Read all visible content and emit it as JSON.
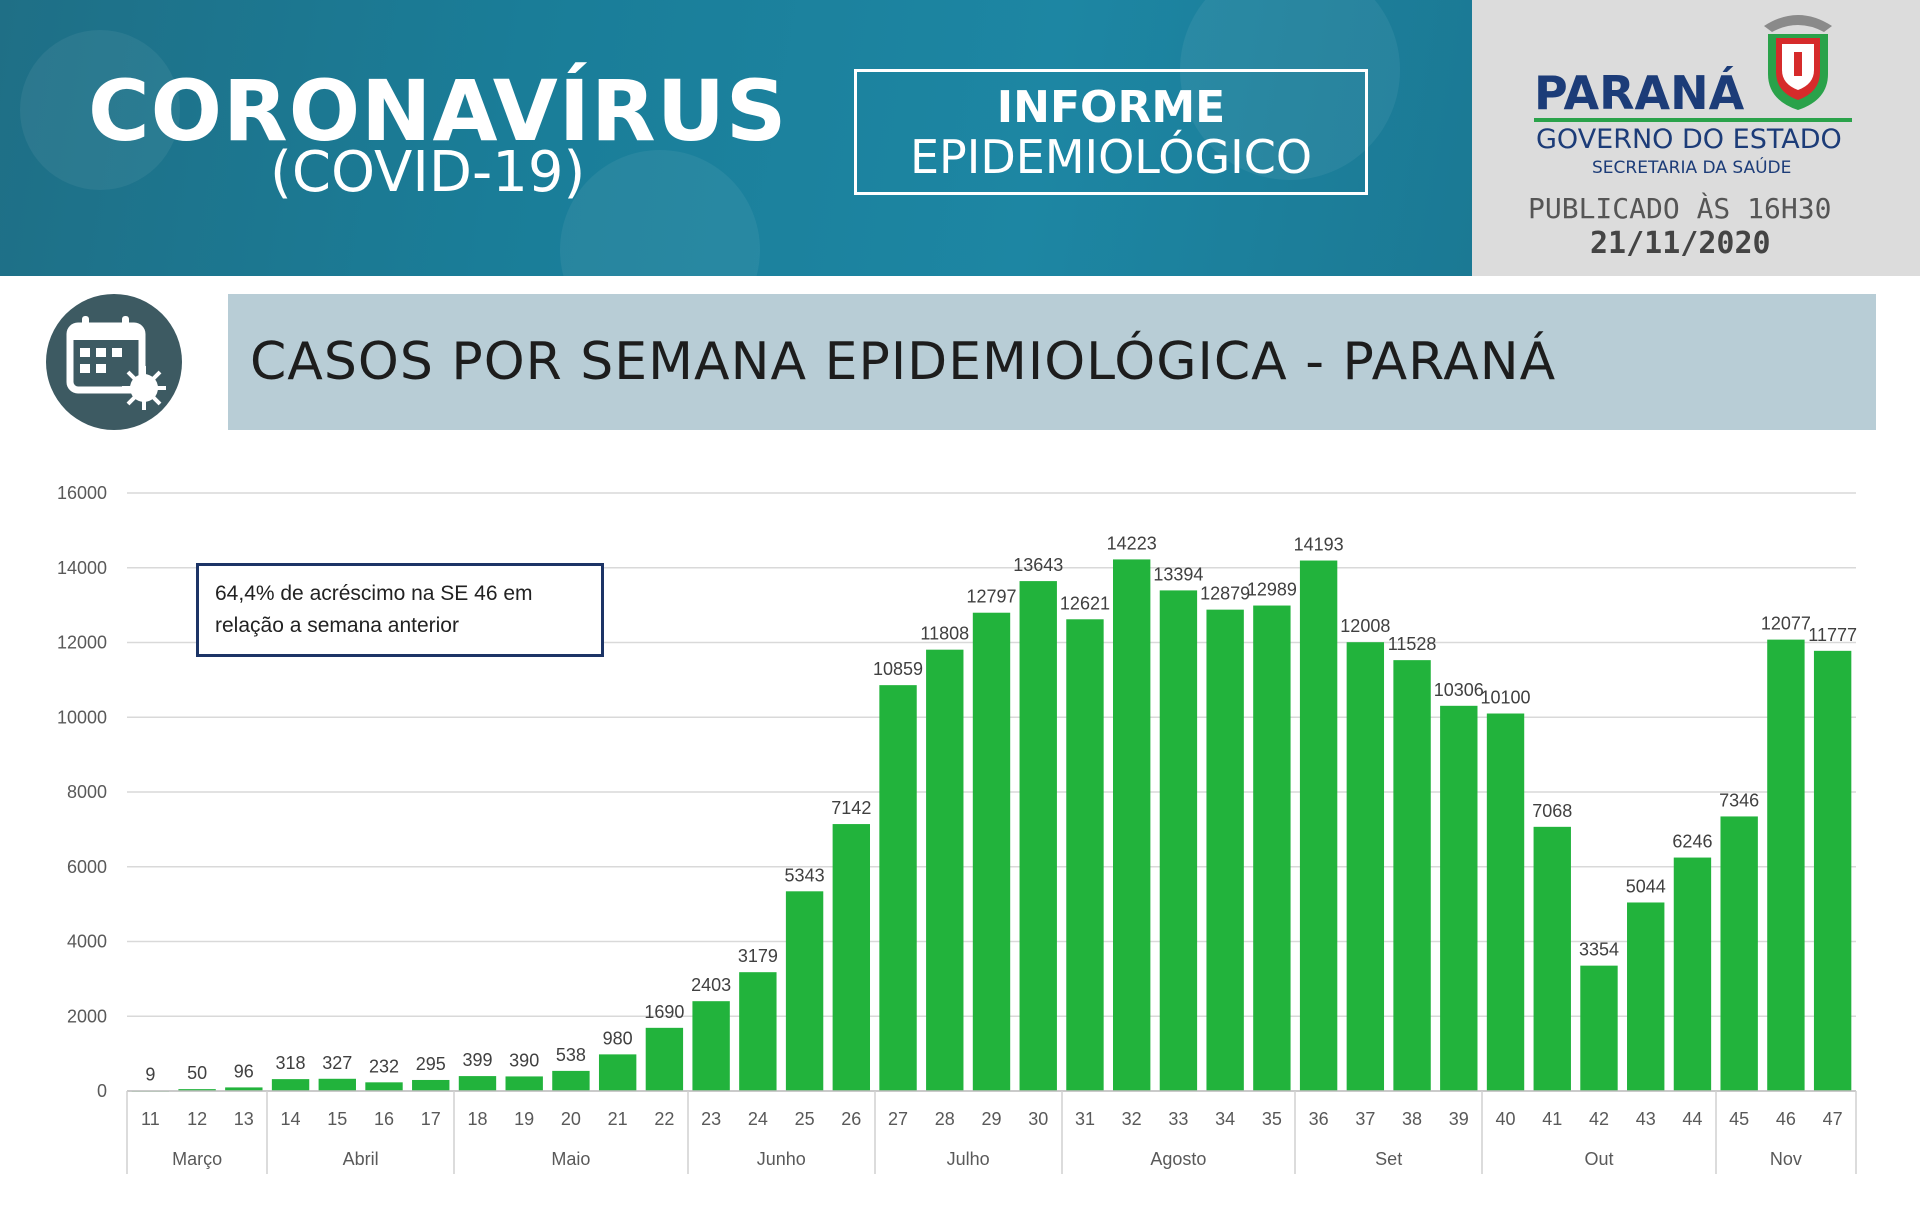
{
  "header": {
    "title": "CORONAVÍRUS",
    "subtitle": "(COVID-19)",
    "informe_line1": "INFORME",
    "informe_line2": "EPIDEMIOLÓGICO",
    "brand": "PARANÁ",
    "government": "GOVERNO DO ESTADO",
    "secretariat": "SECRETARIA DA SAÚDE",
    "published": "PUBLICADO ÀS 16H30",
    "date": "21/11/2020"
  },
  "section": {
    "icon": "calendar-virus-icon",
    "title": "CASOS POR SEMANA EPIDEMIOLÓGICA - PARANÁ"
  },
  "colors": {
    "bar": "#22b33c",
    "banner": "#1b7a95",
    "section_bar": "#b8cdd6",
    "note_border": "#1c3466"
  },
  "chart_data": {
    "type": "bar",
    "categories": [
      "11",
      "12",
      "13",
      "14",
      "15",
      "16",
      "17",
      "18",
      "19",
      "20",
      "21",
      "22",
      "23",
      "24",
      "25",
      "26",
      "27",
      "28",
      "29",
      "30",
      "31",
      "32",
      "33",
      "34",
      "35",
      "36",
      "37",
      "38",
      "39",
      "40",
      "41",
      "42",
      "43",
      "44",
      "45",
      "46",
      "47"
    ],
    "values": [
      9,
      50,
      96,
      318,
      327,
      232,
      295,
      399,
      390,
      538,
      980,
      1690,
      2403,
      3179,
      5343,
      7142,
      10859,
      11808,
      12797,
      13643,
      12621,
      14223,
      13394,
      12879,
      12989,
      14193,
      12008,
      11528,
      10306,
      10100,
      7068,
      3354,
      5044,
      6246,
      7346,
      12077,
      11777
    ],
    "month_groups": [
      {
        "label": "Março",
        "start": 0,
        "end": 2
      },
      {
        "label": "Abril",
        "start": 3,
        "end": 6
      },
      {
        "label": "Maio",
        "start": 7,
        "end": 11
      },
      {
        "label": "Junho",
        "start": 12,
        "end": 15
      },
      {
        "label": "Julho",
        "start": 16,
        "end": 19
      },
      {
        "label": "Agosto",
        "start": 20,
        "end": 24
      },
      {
        "label": "Set",
        "start": 25,
        "end": 28
      },
      {
        "label": "Out",
        "start": 29,
        "end": 33
      },
      {
        "label": "Nov",
        "start": 34,
        "end": 36
      }
    ],
    "yticks": [
      0,
      2000,
      4000,
      6000,
      8000,
      10000,
      12000,
      14000,
      16000
    ],
    "ylim": [
      0,
      16000
    ],
    "grid": true,
    "annotation": "64,4% de acréscimo na SE 46 em relação a semana anterior"
  }
}
